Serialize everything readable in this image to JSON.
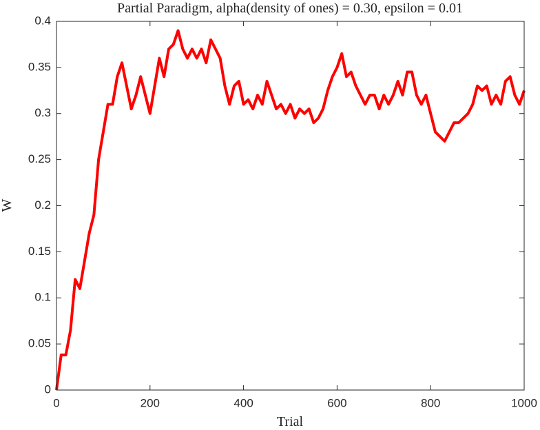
{
  "chart_data": {
    "type": "line",
    "title": "Partial Paradigm, alpha(density of ones) = 0.30, epsilon = 0.01",
    "xlabel": "Trial",
    "ylabel": "W",
    "xlim": [
      0,
      1000
    ],
    "ylim": [
      0,
      0.4
    ],
    "xticks": [
      0,
      200,
      400,
      600,
      800,
      1000
    ],
    "yticks": [
      0,
      0.05,
      0.1,
      0.15,
      0.2,
      0.25,
      0.3,
      0.35,
      0.4
    ],
    "grid": false,
    "x": [
      0,
      10,
      20,
      30,
      40,
      50,
      60,
      70,
      80,
      90,
      100,
      110,
      120,
      130,
      140,
      150,
      160,
      170,
      180,
      190,
      200,
      210,
      220,
      230,
      240,
      250,
      260,
      270,
      280,
      290,
      300,
      310,
      320,
      330,
      340,
      350,
      360,
      370,
      380,
      390,
      400,
      410,
      420,
      430,
      440,
      450,
      460,
      470,
      480,
      490,
      500,
      510,
      520,
      530,
      540,
      550,
      560,
      570,
      580,
      590,
      600,
      610,
      620,
      630,
      640,
      650,
      660,
      670,
      680,
      690,
      700,
      710,
      720,
      730,
      740,
      750,
      760,
      770,
      780,
      790,
      800,
      810,
      820,
      830,
      840,
      850,
      860,
      870,
      880,
      890,
      900,
      910,
      920,
      930,
      940,
      950,
      960,
      970,
      980,
      990,
      1000
    ],
    "series": [
      {
        "color": "#ff0000",
        "values": [
          0,
          0.038,
          0.038,
          0.065,
          0.12,
          0.11,
          0.14,
          0.17,
          0.19,
          0.25,
          0.28,
          0.31,
          0.31,
          0.34,
          0.355,
          0.33,
          0.305,
          0.32,
          0.34,
          0.32,
          0.3,
          0.33,
          0.36,
          0.34,
          0.37,
          0.375,
          0.39,
          0.37,
          0.36,
          0.37,
          0.36,
          0.37,
          0.355,
          0.38,
          0.37,
          0.36,
          0.33,
          0.31,
          0.33,
          0.335,
          0.31,
          0.315,
          0.305,
          0.32,
          0.31,
          0.335,
          0.32,
          0.305,
          0.31,
          0.3,
          0.31,
          0.295,
          0.305,
          0.3,
          0.305,
          0.29,
          0.295,
          0.305,
          0.325,
          0.34,
          0.35,
          0.365,
          0.34,
          0.345,
          0.33,
          0.32,
          0.31,
          0.32,
          0.32,
          0.305,
          0.32,
          0.31,
          0.32,
          0.335,
          0.32,
          0.345,
          0.345,
          0.32,
          0.31,
          0.32,
          0.3,
          0.28,
          0.275,
          0.27,
          0.28,
          0.29,
          0.29,
          0.295,
          0.3,
          0.31,
          0.33,
          0.325,
          0.33,
          0.31,
          0.32,
          0.31,
          0.335,
          0.34,
          0.32,
          0.31,
          0.325
        ]
      }
    ]
  }
}
